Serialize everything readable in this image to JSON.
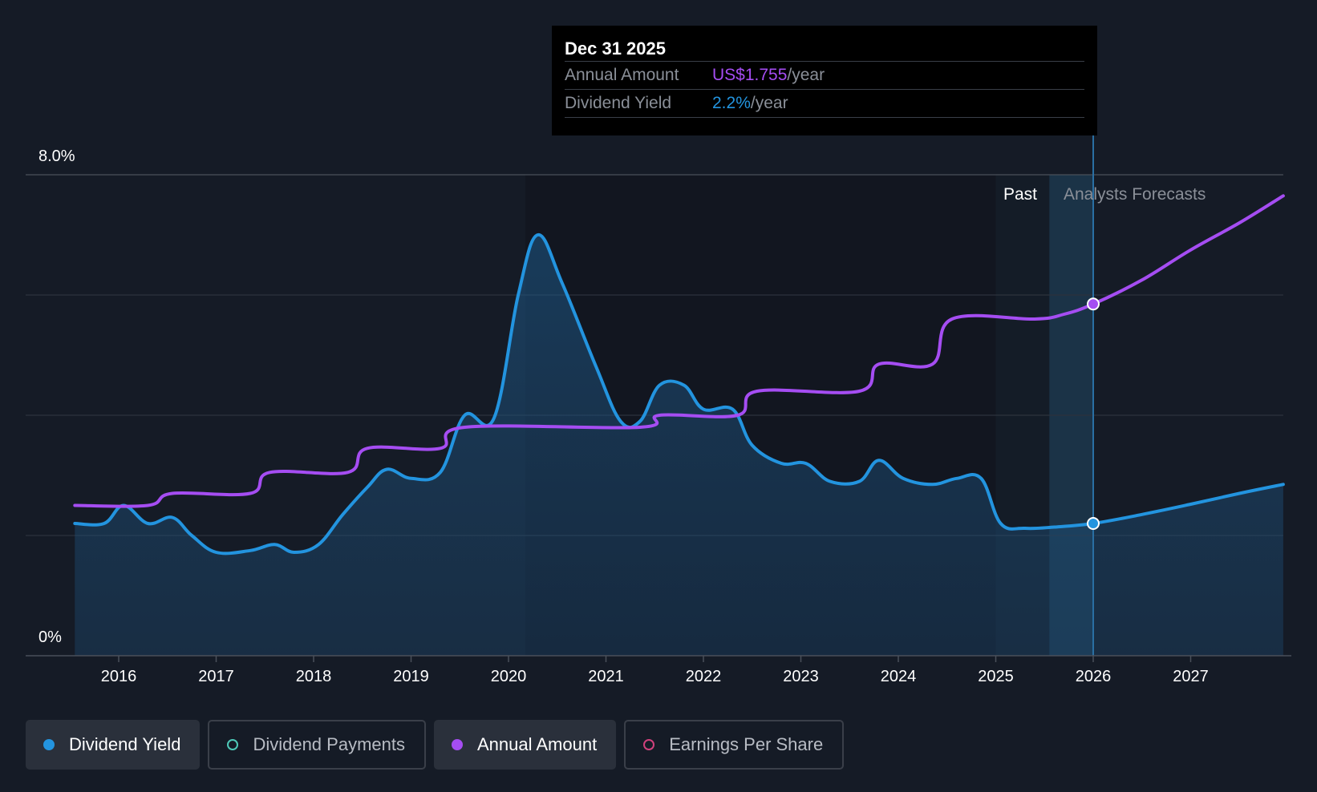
{
  "chart_data": {
    "type": "line",
    "y_axis_labels": [
      "8.0%",
      "0%"
    ],
    "ylim": [
      0,
      8
    ],
    "x_tick_labels": [
      "2016",
      "2017",
      "2018",
      "2019",
      "2020",
      "2021",
      "2022",
      "2023",
      "2024",
      "2025",
      "2026",
      "2027"
    ],
    "xlim": [
      2015.0,
      2027.95
    ],
    "region_labels": {
      "past": "Past",
      "forecast": "Analysts Forecasts"
    },
    "past_band": [
      2025.0,
      2025.55
    ],
    "forecast_band": [
      2025.55,
      2026.0
    ],
    "highlight_x": 2026.0,
    "grid": true,
    "series": [
      {
        "name": "Dividend Yield",
        "color": "#2394df",
        "area": true,
        "points": [
          [
            2015.55,
            2.2
          ],
          [
            2015.85,
            2.2
          ],
          [
            2016.05,
            2.5
          ],
          [
            2016.3,
            2.2
          ],
          [
            2016.55,
            2.3
          ],
          [
            2016.75,
            2.0
          ],
          [
            2017.0,
            1.72
          ],
          [
            2017.35,
            1.75
          ],
          [
            2017.6,
            1.85
          ],
          [
            2017.8,
            1.72
          ],
          [
            2018.05,
            1.85
          ],
          [
            2018.3,
            2.35
          ],
          [
            2018.55,
            2.8
          ],
          [
            2018.75,
            3.1
          ],
          [
            2019.0,
            2.95
          ],
          [
            2019.3,
            3.05
          ],
          [
            2019.55,
            4.0
          ],
          [
            2019.85,
            3.95
          ],
          [
            2020.1,
            6.0
          ],
          [
            2020.3,
            7.0
          ],
          [
            2020.55,
            6.2
          ],
          [
            2020.9,
            4.8
          ],
          [
            2021.15,
            3.9
          ],
          [
            2021.35,
            3.9
          ],
          [
            2021.55,
            4.5
          ],
          [
            2021.8,
            4.5
          ],
          [
            2022.0,
            4.1
          ],
          [
            2022.3,
            4.1
          ],
          [
            2022.5,
            3.5
          ],
          [
            2022.8,
            3.2
          ],
          [
            2023.05,
            3.2
          ],
          [
            2023.3,
            2.9
          ],
          [
            2023.6,
            2.9
          ],
          [
            2023.8,
            3.25
          ],
          [
            2024.05,
            2.95
          ],
          [
            2024.35,
            2.85
          ],
          [
            2024.6,
            2.95
          ],
          [
            2024.85,
            2.95
          ],
          [
            2025.05,
            2.2
          ],
          [
            2025.3,
            2.12
          ],
          [
            2025.6,
            2.14
          ],
          [
            2026.0,
            2.2
          ],
          [
            2026.5,
            2.35
          ],
          [
            2027.0,
            2.52
          ],
          [
            2027.5,
            2.7
          ],
          [
            2027.95,
            2.85
          ]
        ]
      },
      {
        "name": "Annual Amount",
        "color": "#a54df2",
        "area": false,
        "points": [
          [
            2015.55,
            2.5
          ],
          [
            2016.3,
            2.5
          ],
          [
            2016.55,
            2.7
          ],
          [
            2017.35,
            2.7
          ],
          [
            2017.55,
            3.05
          ],
          [
            2018.35,
            3.05
          ],
          [
            2018.55,
            3.45
          ],
          [
            2019.3,
            3.45
          ],
          [
            2019.55,
            3.8
          ],
          [
            2021.35,
            3.8
          ],
          [
            2021.55,
            4.0
          ],
          [
            2022.35,
            4.0
          ],
          [
            2022.55,
            4.4
          ],
          [
            2023.6,
            4.4
          ],
          [
            2023.8,
            4.85
          ],
          [
            2024.35,
            4.85
          ],
          [
            2024.55,
            5.6
          ],
          [
            2025.4,
            5.6
          ],
          [
            2025.7,
            5.68
          ],
          [
            2026.0,
            5.85
          ],
          [
            2026.5,
            6.25
          ],
          [
            2027.0,
            6.75
          ],
          [
            2027.5,
            7.2
          ],
          [
            2027.95,
            7.65
          ]
        ]
      }
    ],
    "tooltip": {
      "date": "Dec 31 2025",
      "rows": [
        {
          "label": "Annual Amount",
          "value": "US$1.755",
          "unit": "/year",
          "color": "#a54df2"
        },
        {
          "label": "Dividend Yield",
          "value": "2.2%",
          "unit": "/year",
          "color": "#2394df"
        }
      ]
    }
  },
  "legend": [
    {
      "label": "Dividend Yield",
      "color": "#2394df",
      "active": true
    },
    {
      "label": "Dividend Payments",
      "color": "#4ec9b8",
      "active": false
    },
    {
      "label": "Annual Amount",
      "color": "#a54df2",
      "active": true
    },
    {
      "label": "Earnings Per Share",
      "color": "#d0417c",
      "active": false
    }
  ]
}
